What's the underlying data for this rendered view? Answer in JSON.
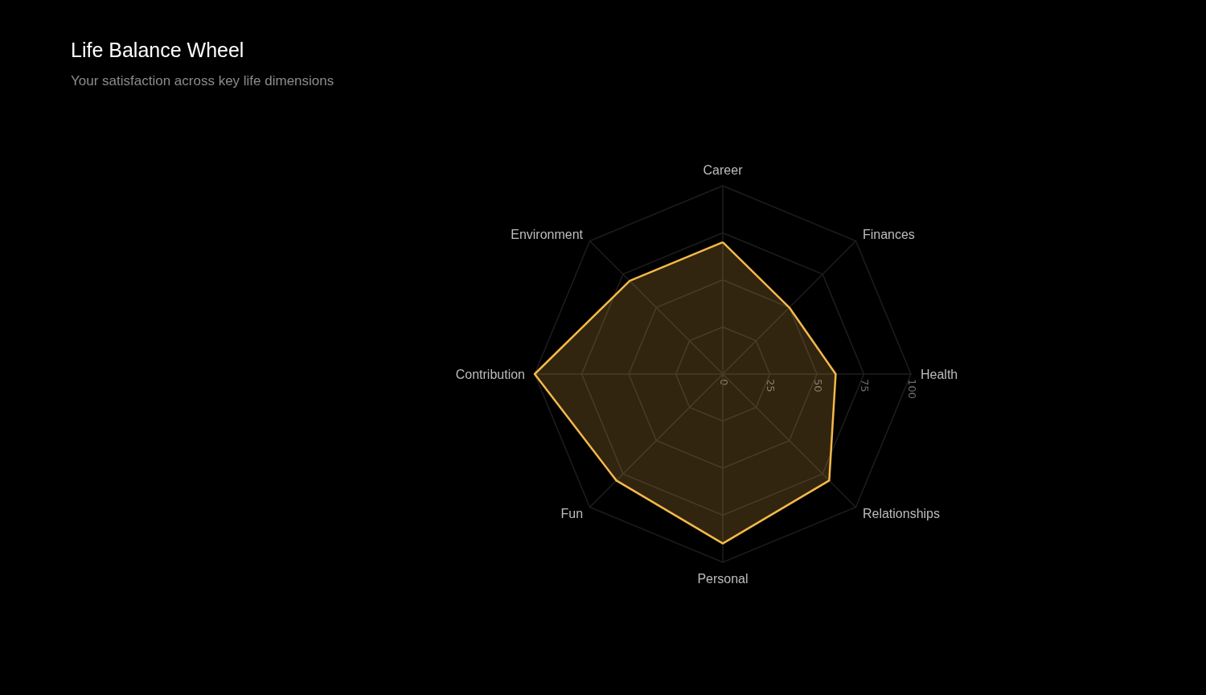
{
  "chart_data": {
    "type": "radar",
    "title": "Life Balance Wheel",
    "subtitle": "Your satisfaction across key life dimensions",
    "categories": [
      "Career",
      "Finances",
      "Health",
      "Relationships",
      "Personal",
      "Fun",
      "Contribution",
      "Environment"
    ],
    "series": [
      {
        "color": "#f5b94b",
        "values": [
          70,
          50,
          60,
          80,
          90,
          80,
          100,
          70
        ]
      }
    ],
    "ylim": [
      0,
      100
    ],
    "yticks": [
      0,
      25,
      50,
      75,
      100
    ],
    "grid": true,
    "marker": "none"
  }
}
